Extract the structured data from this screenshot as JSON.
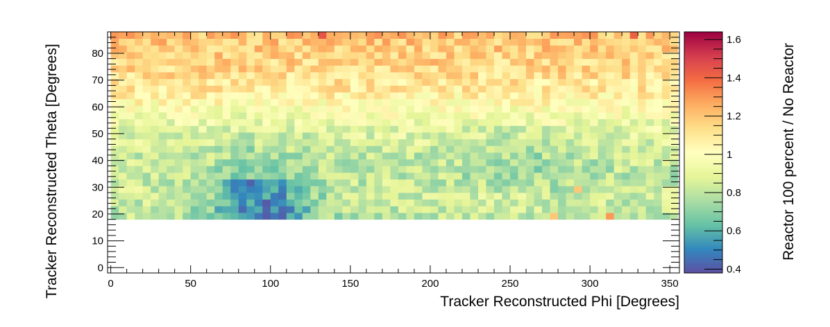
{
  "chart_data": {
    "type": "heatmap",
    "title": "",
    "xlabel": "Tracker Reconstructed Phi [Degrees]",
    "ylabel": "Tracker Reconstructed Theta [Degrees]",
    "zlabel": "Reactor 100 percent / No Reactor",
    "xlim": [
      -2,
      356
    ],
    "ylim": [
      -2,
      88
    ],
    "zlim": [
      0.38,
      1.64
    ],
    "x_ticks": [
      "0",
      "50",
      "100",
      "150",
      "200",
      "250",
      "300",
      "350"
    ],
    "y_ticks": [
      "0",
      "10",
      "20",
      "30",
      "40",
      "50",
      "60",
      "70",
      "80"
    ],
    "z_ticks": [
      "0.4",
      "0.6",
      "0.8",
      "1",
      "1.2",
      "1.4",
      "1.6"
    ],
    "x_bin_start": 0,
    "x_bin_width": 5,
    "x_bins": 71,
    "y_bin_start": 18,
    "y_bin_width": 2.5,
    "y_bins": 28,
    "colormap": [
      "#5e4fa2",
      "#3288bd",
      "#66c2a5",
      "#abdda4",
      "#e6f598",
      "#ffffbf",
      "#fee08b",
      "#fdae61",
      "#f46d43",
      "#d53e4f",
      "#9e0142"
    ],
    "row_profile": {
      "theta": [
        19.25,
        21.75,
        24.25,
        26.75,
        29.25,
        31.75,
        34.25,
        36.75,
        39.25,
        41.75,
        44.25,
        46.75,
        49.25,
        51.75,
        54.25,
        56.75,
        59.25,
        61.75,
        64.25,
        66.75,
        69.25,
        71.75,
        74.25,
        76.75,
        79.25,
        81.75,
        84.25,
        86.75
      ],
      "mean_ratio": [
        0.8,
        0.82,
        0.83,
        0.84,
        0.84,
        0.82,
        0.81,
        0.81,
        0.82,
        0.82,
        0.84,
        0.86,
        0.88,
        0.9,
        0.93,
        0.96,
        0.99,
        1.03,
        1.06,
        1.09,
        1.11,
        1.13,
        1.15,
        1.16,
        1.17,
        1.18,
        1.19,
        1.21
      ]
    },
    "low_region": {
      "phi": [
        55,
        135
      ],
      "theta": [
        18,
        30
      ],
      "min_ratio": 0.42
    },
    "outliers": [
      {
        "phi": 310,
        "theta": 19.25,
        "ratio": 1.3
      },
      {
        "phi": 130,
        "theta": 86.75,
        "ratio": 1.45
      },
      {
        "phi": 325,
        "theta": 86.75,
        "ratio": 1.42
      },
      {
        "phi": 275,
        "theta": 19.25,
        "ratio": 1.2
      },
      {
        "phi": 290,
        "theta": 29.25,
        "ratio": 1.2
      }
    ],
    "grid": false,
    "legend": "colorbar-right"
  }
}
